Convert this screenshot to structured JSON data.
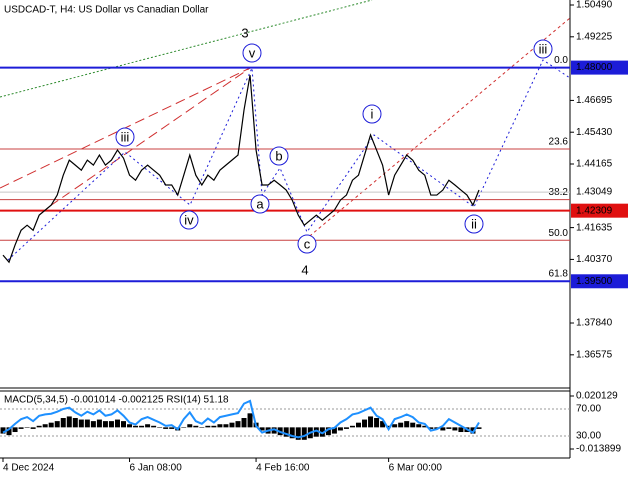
{
  "chart_data": [
    {
      "type": "line",
      "title": "USDCAD-T, H4:  US Dollar vs Canadian Dollar",
      "color": "#000000",
      "categories": [
        "4 Dec 2024",
        null,
        null,
        null,
        null,
        null,
        null,
        null,
        null,
        null,
        null,
        null,
        null,
        null,
        null,
        null,
        null,
        null,
        null,
        null,
        null,
        "6 Jan 08:00",
        null,
        null,
        null,
        null,
        null,
        null,
        null,
        null,
        null,
        null,
        null,
        null,
        null,
        null,
        null,
        null,
        null,
        null,
        null,
        null,
        "4 Feb 16:00",
        null,
        null,
        null,
        null,
        null,
        null,
        null,
        null,
        null,
        null,
        null,
        null,
        null,
        null,
        null,
        null,
        null,
        null,
        null,
        null,
        null,
        "6 Mar 00:00",
        null,
        null,
        null,
        null,
        null,
        null,
        null,
        null,
        null,
        null,
        null,
        null,
        null,
        null,
        null
      ],
      "values": [
        1.4054,
        1.4026,
        1.4094,
        1.4153,
        1.4173,
        1.4153,
        1.4213,
        1.4233,
        1.4253,
        1.4293,
        1.4372,
        1.4432,
        1.4412,
        1.4392,
        1.4432,
        1.4412,
        1.4452,
        1.4412,
        1.4432,
        1.4472,
        1.444,
        1.4372,
        1.4352,
        1.4392,
        1.4412,
        1.4392,
        1.4372,
        1.4333,
        1.4333,
        1.4293,
        1.4372,
        1.4452,
        1.4372,
        1.4333,
        1.4372,
        1.4352,
        1.4392,
        1.4412,
        1.4432,
        1.4452,
        1.4631,
        1.477,
        1.4472,
        1.4333,
        1.4333,
        1.4352,
        1.4333,
        1.4313,
        1.4273,
        1.4213,
        1.4173,
        1.4193,
        1.4213,
        1.4193,
        1.4213,
        1.4233,
        1.4273,
        1.4293,
        1.4352,
        1.4372,
        1.4452,
        1.4532,
        1.4472,
        1.4412,
        1.4293,
        1.4372,
        1.4412,
        1.4452,
        1.4432,
        1.4392,
        1.4372,
        1.4293,
        1.4293,
        1.4313,
        1.4352,
        1.4333,
        1.4313,
        1.4293,
        1.4253,
        1.4313
      ],
      "ylim": [
        1.35255,
        1.50689
      ],
      "yticks": [
        {
          "value": 1.5049,
          "label": "1.50490"
        },
        1.49225,
        1.46695,
        {
          "value": 1.4543,
          "label": "1.45430"
        },
        1.44165,
        1.41635,
        {
          "value": 1.4037,
          "label": "1.40370"
        },
        {
          "value": 1.3784,
          "label": "1.37840"
        },
        1.36575
      ],
      "levels": [
        {
          "value": 1.48,
          "label": "1.48000",
          "color": "#1c1cd8",
          "text_color": "#ffffff"
        },
        {
          "value": 1.43049,
          "label": "1.43049",
          "color": "#c8c8c8",
          "text_color": "#000000"
        },
        {
          "value": 1.42309,
          "label": "1.42309",
          "color": "#e01010",
          "text_color": "#ffffff"
        },
        {
          "value": 1.395,
          "label": "1.39500",
          "color": "#1c1cd8",
          "text_color": "#ffffff"
        }
      ],
      "fib_levels": [
        {
          "value": 1.48,
          "label": "0.0"
        },
        {
          "value": 1.4476,
          "label": "23.6"
        },
        {
          "value": 1.4275,
          "label": "38.2"
        },
        {
          "value": 1.4113,
          "label": "50.0"
        },
        {
          "value": 1.3951,
          "label": "61.8"
        }
      ],
      "wave_labels": [
        "3",
        "4",
        "iii",
        "iv",
        "v",
        "a",
        "b",
        "c",
        "i",
        "ii",
        "iii"
      ]
    },
    {
      "type": "oscillator",
      "title": "MACD(5,34,5) -0.001014 -0.002125 RSI(14) 51.18",
      "ylim": [
        -0.013899,
        0.020129
      ],
      "yticks": [
        0.020129,
        -0.013899
      ],
      "y2lim": [
        10.7,
        89.3
      ],
      "y2ticks": [
        {
          "value": 70,
          "label": "70.00"
        },
        {
          "value": 30,
          "label": "30.00"
        }
      ],
      "series": [
        {
          "color": "#000000",
          "values": [
            -0.004,
            -0.005,
            -0.003,
            -0.001,
            0.0,
            -0.001,
            0.001,
            0.002,
            0.003,
            0.004,
            0.006,
            0.007,
            0.006,
            0.005,
            0.005,
            0.004,
            0.005,
            0.004,
            0.004,
            0.005,
            0.004,
            0.002,
            0.001,
            0.001,
            0.002,
            0.001,
            0.0,
            -0.001,
            -0.001,
            -0.002,
            0.0,
            0.002,
            0.001,
            0.0,
            0.001,
            0.001,
            0.002,
            0.002,
            0.003,
            0.004,
            0.006,
            0.009,
            0.003,
            -0.002,
            -0.004,
            -0.004,
            -0.005,
            -0.006,
            -0.007,
            -0.008,
            -0.008,
            -0.007,
            -0.006,
            -0.006,
            -0.005,
            -0.004,
            -0.002,
            -0.001,
            0.001,
            0.003,
            0.005,
            0.007,
            0.006,
            0.004,
            0.001,
            0.002,
            0.003,
            0.004,
            0.003,
            0.002,
            0.001,
            -0.001,
            -0.001,
            -0.002,
            -0.001,
            -0.002,
            -0.003,
            -0.003,
            -0.004,
            -0.001
          ]
        },
        {
          "color": "#1e90ff",
          "axis": "y2",
          "values": [
            35,
            40,
            48,
            55,
            58,
            52,
            60,
            62,
            63,
            66,
            70,
            72,
            65,
            60,
            66,
            62,
            68,
            60,
            62,
            68,
            60,
            50,
            47,
            55,
            58,
            54,
            50,
            45,
            46,
            40,
            55,
            65,
            52,
            48,
            56,
            50,
            58,
            60,
            62,
            64,
            78,
            82,
            45,
            35,
            38,
            40,
            36,
            33,
            30,
            28,
            30,
            35,
            38,
            34,
            40,
            42,
            50,
            55,
            62,
            64,
            68,
            72,
            60,
            55,
            40,
            55,
            58,
            62,
            58,
            50,
            48,
            38,
            40,
            45,
            55,
            50,
            45,
            40,
            35,
            50
          ]
        }
      ]
    }
  ]
}
